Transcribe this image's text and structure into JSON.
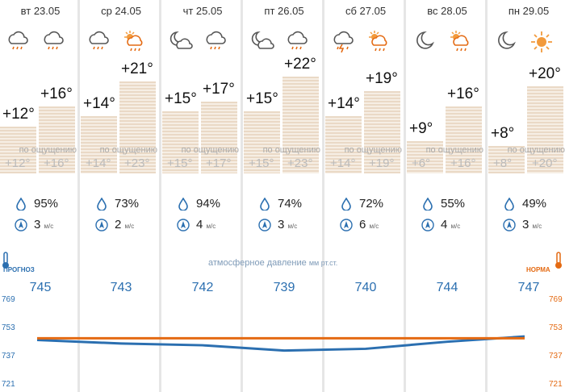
{
  "colors": {
    "accent_blue": "#2b6fb0",
    "accent_orange": "#e46a12",
    "bar_fill": "#ead9c6"
  },
  "days": [
    {
      "date": "вт 23.05",
      "icons": [
        "cloud-rain-icon",
        "cloud-rain-icon"
      ],
      "min": "+12°",
      "max": "+16°",
      "feel_caption": "по ощущению",
      "feel_min": "+12°",
      "feel_max": "+16°",
      "humidity": "95%",
      "wind": "3",
      "wind_unit": "м/с",
      "pressure": "745"
    },
    {
      "date": "ср 24.05",
      "icons": [
        "cloud-rain-icon",
        "sun-cloud-rain-icon"
      ],
      "min": "+14°",
      "max": "+21°",
      "feel_caption": "по ощущению",
      "feel_min": "+14°",
      "feel_max": "+23°",
      "humidity": "73%",
      "wind": "2",
      "wind_unit": "м/с",
      "pressure": "743"
    },
    {
      "date": "чт 25.05",
      "icons": [
        "moon-cloud-icon",
        "cloud-rain-icon"
      ],
      "min": "+15°",
      "max": "+17°",
      "feel_caption": "по ощущению",
      "feel_min": "+15°",
      "feel_max": "+17°",
      "humidity": "94%",
      "wind": "4",
      "wind_unit": "м/с",
      "pressure": "742"
    },
    {
      "date": "пт 26.05",
      "icons": [
        "moon-cloud-icon",
        "cloud-rain-icon"
      ],
      "min": "+15°",
      "max": "+22°",
      "feel_caption": "по ощущению",
      "feel_min": "+15°",
      "feel_max": "+23°",
      "humidity": "74%",
      "wind": "3",
      "wind_unit": "м/с",
      "pressure": "739"
    },
    {
      "date": "сб 27.05",
      "icons": [
        "cloud-thunder-icon",
        "sun-cloud-rain-icon"
      ],
      "min": "+14°",
      "max": "+19°",
      "feel_caption": "по ощущению",
      "feel_min": "+14°",
      "feel_max": "+19°",
      "humidity": "72%",
      "wind": "6",
      "wind_unit": "м/с",
      "pressure": "740"
    },
    {
      "date": "вс 28.05",
      "icons": [
        "moon-icon",
        "sun-cloud-rain-icon"
      ],
      "min": "+9°",
      "max": "+16°",
      "feel_caption": "по ощущению",
      "feel_min": "+6°",
      "feel_max": "+16°",
      "humidity": "55%",
      "wind": "4",
      "wind_unit": "м/с",
      "pressure": "744"
    },
    {
      "date": "пн 29.05",
      "icons": [
        "moon-icon",
        "sun-icon"
      ],
      "min": "+8°",
      "max": "+20°",
      "feel_caption": "по ощущению",
      "feel_min": "+8°",
      "feel_max": "+20°",
      "humidity": "49%",
      "wind": "3",
      "wind_unit": "м/с",
      "pressure": "747"
    }
  ],
  "labels": {
    "forecast": "ПРОГНОЗ",
    "norm": "НОРМА",
    "pressure_caption": "атмосферное давление",
    "pressure_unit": "мм рт.ст."
  },
  "pressure_axis": {
    "ticks": [
      "769",
      "753",
      "737",
      "721"
    ]
  },
  "chart_data": {
    "type": "line",
    "categories": [
      "вт 23.05",
      "ср 24.05",
      "чт 25.05",
      "пт 26.05",
      "сб 27.05",
      "вс 28.05",
      "пн 29.05"
    ],
    "series": [
      {
        "name": "",
        "values": [
          745,
          743,
          742,
          739,
          740,
          744,
          747
        ]
      },
      {
        "name": "",
        "values": [
          746,
          746,
          746,
          746,
          746,
          746,
          746
        ]
      }
    ],
    "ylim": [
      721,
      769
    ]
  }
}
